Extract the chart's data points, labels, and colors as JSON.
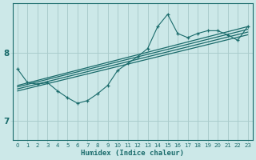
{
  "xlabel": "Humidex (Indice chaleur)",
  "ylabel": "",
  "bg_color": "#cce8e8",
  "grid_color": "#aacccc",
  "line_color": "#1a6b6b",
  "xlim": [
    -0.5,
    23.5
  ],
  "ylim": [
    6.72,
    8.72
  ],
  "yticks": [
    7,
    8
  ],
  "ytick_labels": [
    "7",
    "8"
  ],
  "xticks": [
    0,
    1,
    2,
    3,
    4,
    5,
    6,
    7,
    8,
    9,
    10,
    11,
    12,
    13,
    14,
    15,
    16,
    17,
    18,
    19,
    20,
    21,
    22,
    23
  ],
  "main_x": [
    0,
    1,
    2,
    3,
    4,
    5,
    6,
    7,
    8,
    9,
    10,
    11,
    12,
    13,
    14,
    15,
    16,
    17,
    18,
    19,
    20,
    21,
    22,
    23
  ],
  "main_y": [
    7.76,
    7.56,
    7.54,
    7.56,
    7.44,
    7.34,
    7.26,
    7.3,
    7.4,
    7.52,
    7.74,
    7.84,
    7.94,
    8.06,
    8.38,
    8.56,
    8.28,
    8.22,
    8.28,
    8.32,
    8.32,
    8.26,
    8.18,
    8.38
  ],
  "line1_x": [
    0,
    23
  ],
  "line1_y": [
    7.52,
    8.38
  ],
  "line2_x": [
    0,
    23
  ],
  "line2_y": [
    7.5,
    8.34
  ],
  "line3_x": [
    0,
    23
  ],
  "line3_y": [
    7.47,
    8.3
  ],
  "line4_x": [
    0,
    23
  ],
  "line4_y": [
    7.44,
    8.26
  ]
}
